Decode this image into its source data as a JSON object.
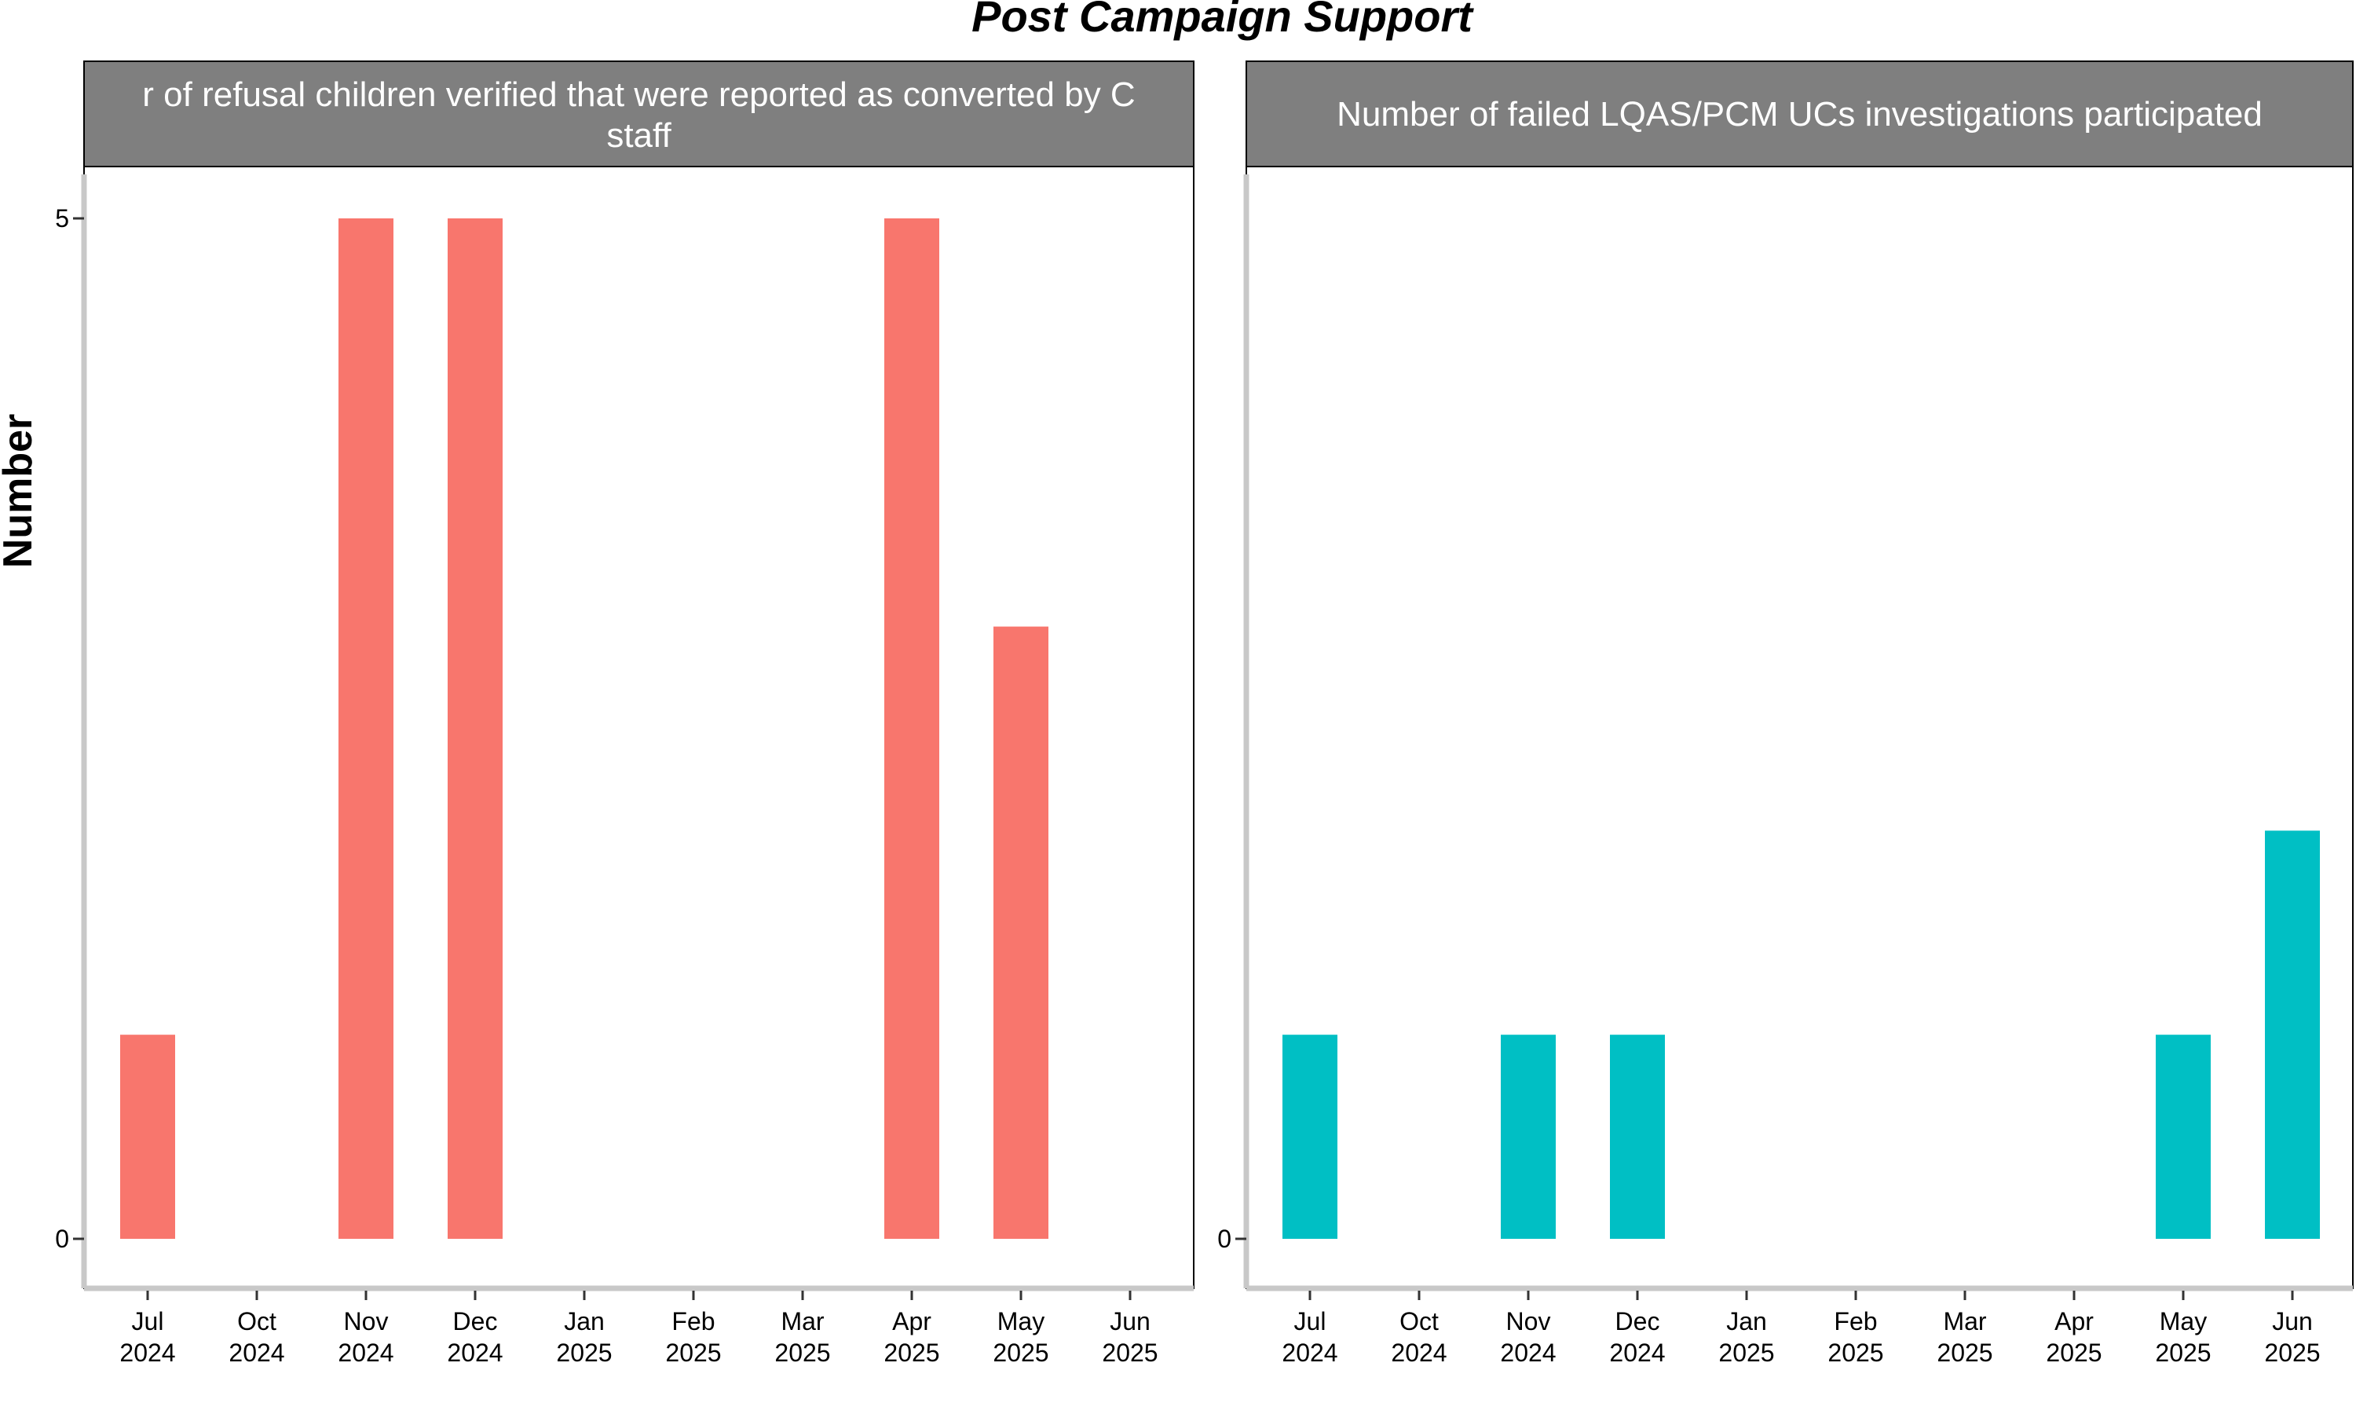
{
  "title": "Post Campaign Support",
  "ylabel": "Number",
  "colors": {
    "series1": "#F8766D",
    "series2": "#00BFC4",
    "strip": "#7F7F7F",
    "axis": "#C8C8C8"
  },
  "chart_data": [
    {
      "type": "bar",
      "title_lines": [
        "r of refusal children verified that were reported as converted by C",
        "staff"
      ],
      "categories": [
        [
          "Jul",
          "2024"
        ],
        [
          "Oct",
          "2024"
        ],
        [
          "Nov",
          "2024"
        ],
        [
          "Dec",
          "2024"
        ],
        [
          "Jan",
          "2025"
        ],
        [
          "Feb",
          "2025"
        ],
        [
          "Mar",
          "2025"
        ],
        [
          "Apr",
          "2025"
        ],
        [
          "May",
          "2025"
        ],
        [
          "Jun",
          "2025"
        ]
      ],
      "values": [
        1,
        0,
        5,
        5,
        0,
        0,
        0,
        5,
        3,
        0
      ],
      "ylim": [
        0,
        5
      ],
      "yticks": [
        "0",
        "5"
      ],
      "color": "#F8766D"
    },
    {
      "type": "bar",
      "title_lines": [
        "Number of failed LQAS/PCM UCs investigations participated"
      ],
      "categories": [
        [
          "Jul",
          "2024"
        ],
        [
          "Oct",
          "2024"
        ],
        [
          "Nov",
          "2024"
        ],
        [
          "Dec",
          "2024"
        ],
        [
          "Jan",
          "2025"
        ],
        [
          "Feb",
          "2025"
        ],
        [
          "Mar",
          "2025"
        ],
        [
          "Apr",
          "2025"
        ],
        [
          "May",
          "2025"
        ],
        [
          "Jun",
          "2025"
        ]
      ],
      "values": [
        1,
        0,
        1,
        1,
        0,
        0,
        0,
        0,
        1,
        2
      ],
      "ylim": [
        0,
        2
      ],
      "yticks": [
        "0"
      ],
      "color": "#00BFC4"
    }
  ]
}
